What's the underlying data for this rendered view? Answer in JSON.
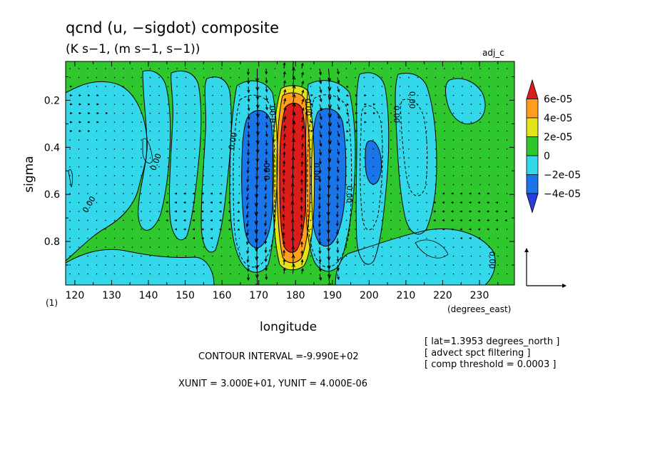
{
  "chart_data": {
    "type": "heatmap",
    "title": "qcnd (u, −sigdot) composite",
    "subtitle": "(K s−1, (m s−1, s−1))",
    "dataset_tag": "adj_c",
    "xlabel": "longitude",
    "xunits": "(degrees_east)",
    "ylabel": "sigma",
    "panel_index": "(1)",
    "xlim": [
      117.5,
      239.5
    ],
    "ylim": [
      0.985,
      0.035
    ],
    "x_ticks": [
      120,
      130,
      140,
      150,
      160,
      170,
      180,
      190,
      200,
      210,
      220,
      230
    ],
    "y_ticks": [
      0.2,
      0.4,
      0.6,
      0.8
    ],
    "colorbar": {
      "labels": [
        "6e-05",
        "4e-05",
        "2e-05",
        "0",
        "−2e-05",
        "−4e-05"
      ],
      "colors": [
        "#dd1c1c",
        "#ff9d1c",
        "#e3e31c",
        "#2ec82e",
        "#33d8ea",
        "#1a75e8",
        "#2a3ee0"
      ]
    },
    "fill_colors": {
      "background": "#2ec82e",
      "weak_negative": "#33d8ea",
      "strong_negative": "#1a75e8",
      "strong_positive": "#dd1c1c",
      "mid_positive": "#ff9d1c",
      "weak_positive": "#e3e31c"
    },
    "contour_labels": [
      "0.00",
      "0.00",
      "0.00",
      "0.00",
      "0.00",
      "0.00",
      "0.00",
      "0.00",
      "0.00",
      "0.00",
      "0.00"
    ],
    "notes": [
      "[ lat=1.3953 degrees_north ]",
      "[ advect spct filtering ]",
      "[ comp threshold = 0.0003 ]"
    ],
    "contour_interval": "CONTOUR INTERVAL =-9.990E+02",
    "units_line": "XUNIT = 3.000E+01, YUNIT = 4.000E-06",
    "grid": false,
    "legend_position": "right"
  }
}
